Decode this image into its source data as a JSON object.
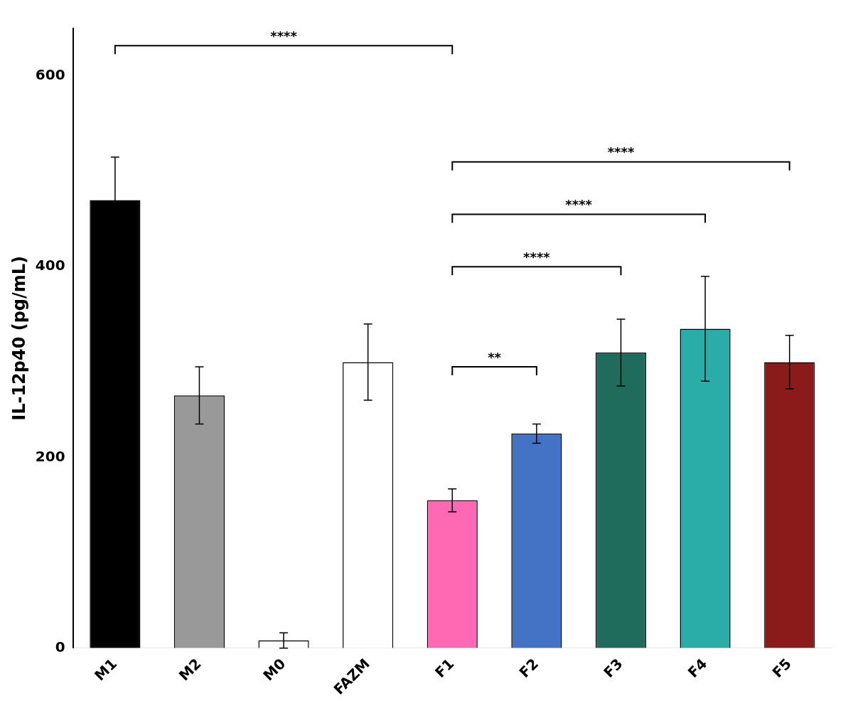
{
  "chart_data": {
    "type": "bar",
    "categories": [
      "M1",
      "M2",
      "M0",
      "FAZM",
      "F1",
      "F2",
      "F3",
      "F4",
      "F5"
    ],
    "values": [
      470,
      265,
      8,
      300,
      155,
      225,
      310,
      335,
      300
    ],
    "errors": [
      45,
      30,
      8,
      40,
      12,
      10,
      35,
      55,
      28
    ],
    "colors": [
      "#000000",
      "#999999",
      "#ffffff",
      "#ffffff",
      "#FF69B4",
      "#4472C4",
      "#1F6B5C",
      "#2AADA8",
      "#8B1A1A"
    ],
    "ylabel": "IL-12p40 (pg/mL)",
    "ylim": [
      0,
      650
    ],
    "yticks": [
      0,
      200,
      400,
      600
    ],
    "grid": false,
    "annotations": [
      {
        "text": "****",
        "x": [
          "M1",
          "F1"
        ],
        "y": 632
      },
      {
        "text": "**",
        "x": [
          "F1",
          "F2"
        ],
        "y": 295
      },
      {
        "text": "****",
        "x": [
          "F1",
          "F3"
        ],
        "y": 400
      },
      {
        "text": "****",
        "x": [
          "F1",
          "F4"
        ],
        "y": 455
      },
      {
        "text": "****",
        "x": [
          "F1",
          "F5"
        ],
        "y": 510
      }
    ]
  }
}
